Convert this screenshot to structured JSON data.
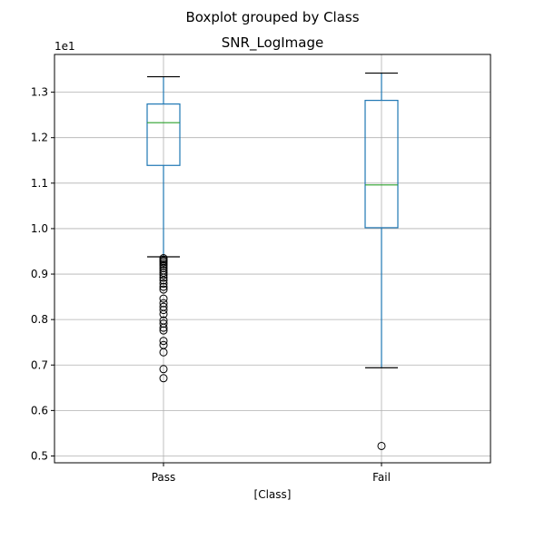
{
  "suptitle": "Boxplot grouped by Class",
  "chart_data": {
    "type": "boxplot",
    "title": "SNR_LogImage",
    "xlabel": "[Class]",
    "ylabel": "",
    "y_offset_label": "1e1",
    "categories": [
      "Pass",
      "Fail"
    ],
    "ylim": [
      0.485,
      1.383
    ],
    "yticks": [
      0.5,
      0.6,
      0.7,
      0.8,
      0.9,
      1.0,
      1.1,
      1.2,
      1.3
    ],
    "ytick_labels": [
      "0.5",
      "0.6",
      "0.7",
      "0.8",
      "0.9",
      "1.0",
      "1.1",
      "1.2",
      "1.3"
    ],
    "grid": true,
    "colors": {
      "box": "#1f77b4",
      "median": "#2ca02c",
      "whisker_cap": "#000000",
      "flier": "#000000",
      "grid": "#b0b0b0"
    },
    "boxes": [
      {
        "category": "Pass",
        "whislo": 0.938,
        "q1": 1.139,
        "med": 1.233,
        "q3": 1.274,
        "whishi": 1.334,
        "fliers": [
          0.935,
          0.932,
          0.929,
          0.926,
          0.922,
          0.918,
          0.913,
          0.908,
          0.903,
          0.898,
          0.892,
          0.886,
          0.879,
          0.872,
          0.866,
          0.846,
          0.836,
          0.828,
          0.821,
          0.812,
          0.798,
          0.791,
          0.782,
          0.776,
          0.753,
          0.744,
          0.728,
          0.691,
          0.671
        ]
      },
      {
        "category": "Fail",
        "whislo": 0.694,
        "q1": 1.002,
        "med": 1.096,
        "q3": 1.282,
        "whishi": 1.342,
        "fliers": [
          0.522
        ]
      }
    ]
  }
}
